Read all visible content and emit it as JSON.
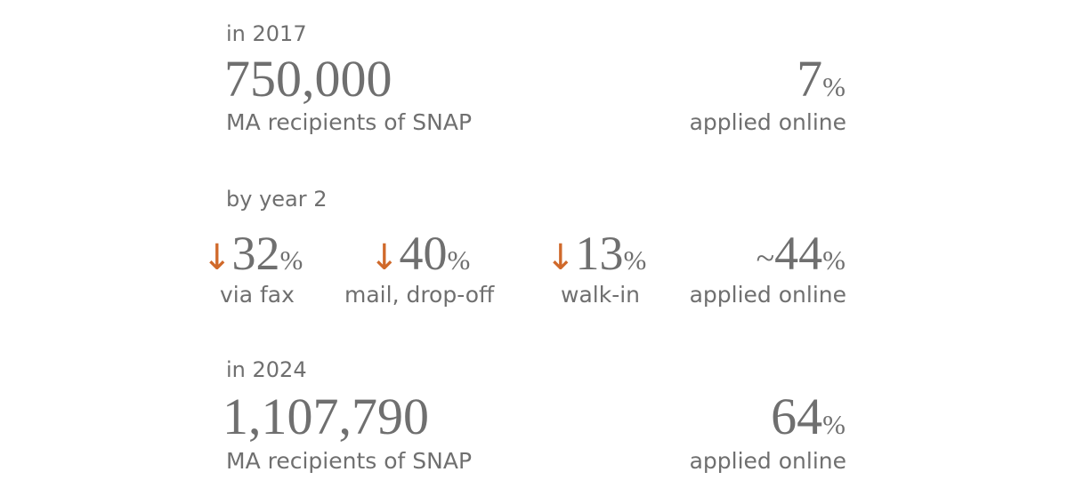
{
  "colors": {
    "text": "#6f6f6f",
    "accent": "#d0692a"
  },
  "y2017": {
    "heading": "in 2017",
    "recipients": "750,000",
    "recipients_label": "MA recipients of SNAP",
    "online_value": "7",
    "percent_sign": "%",
    "online_label": "applied online"
  },
  "year2": {
    "heading": "by year 2",
    "arrow_glyph": "↓",
    "percent_sign": "%",
    "fax_value": "32",
    "fax_label": "via fax",
    "mail_value": "40",
    "mail_label": "mail, drop-off",
    "walkin_value": "13",
    "walkin_label": "walk-in",
    "online_prefix": "~",
    "online_value": "44",
    "online_label": "applied online"
  },
  "y2024": {
    "heading": "in 2024",
    "recipients": "1,107,790",
    "recipients_label": "MA recipients of SNAP",
    "online_value": "64",
    "percent_sign": "%",
    "online_label": "applied online"
  }
}
